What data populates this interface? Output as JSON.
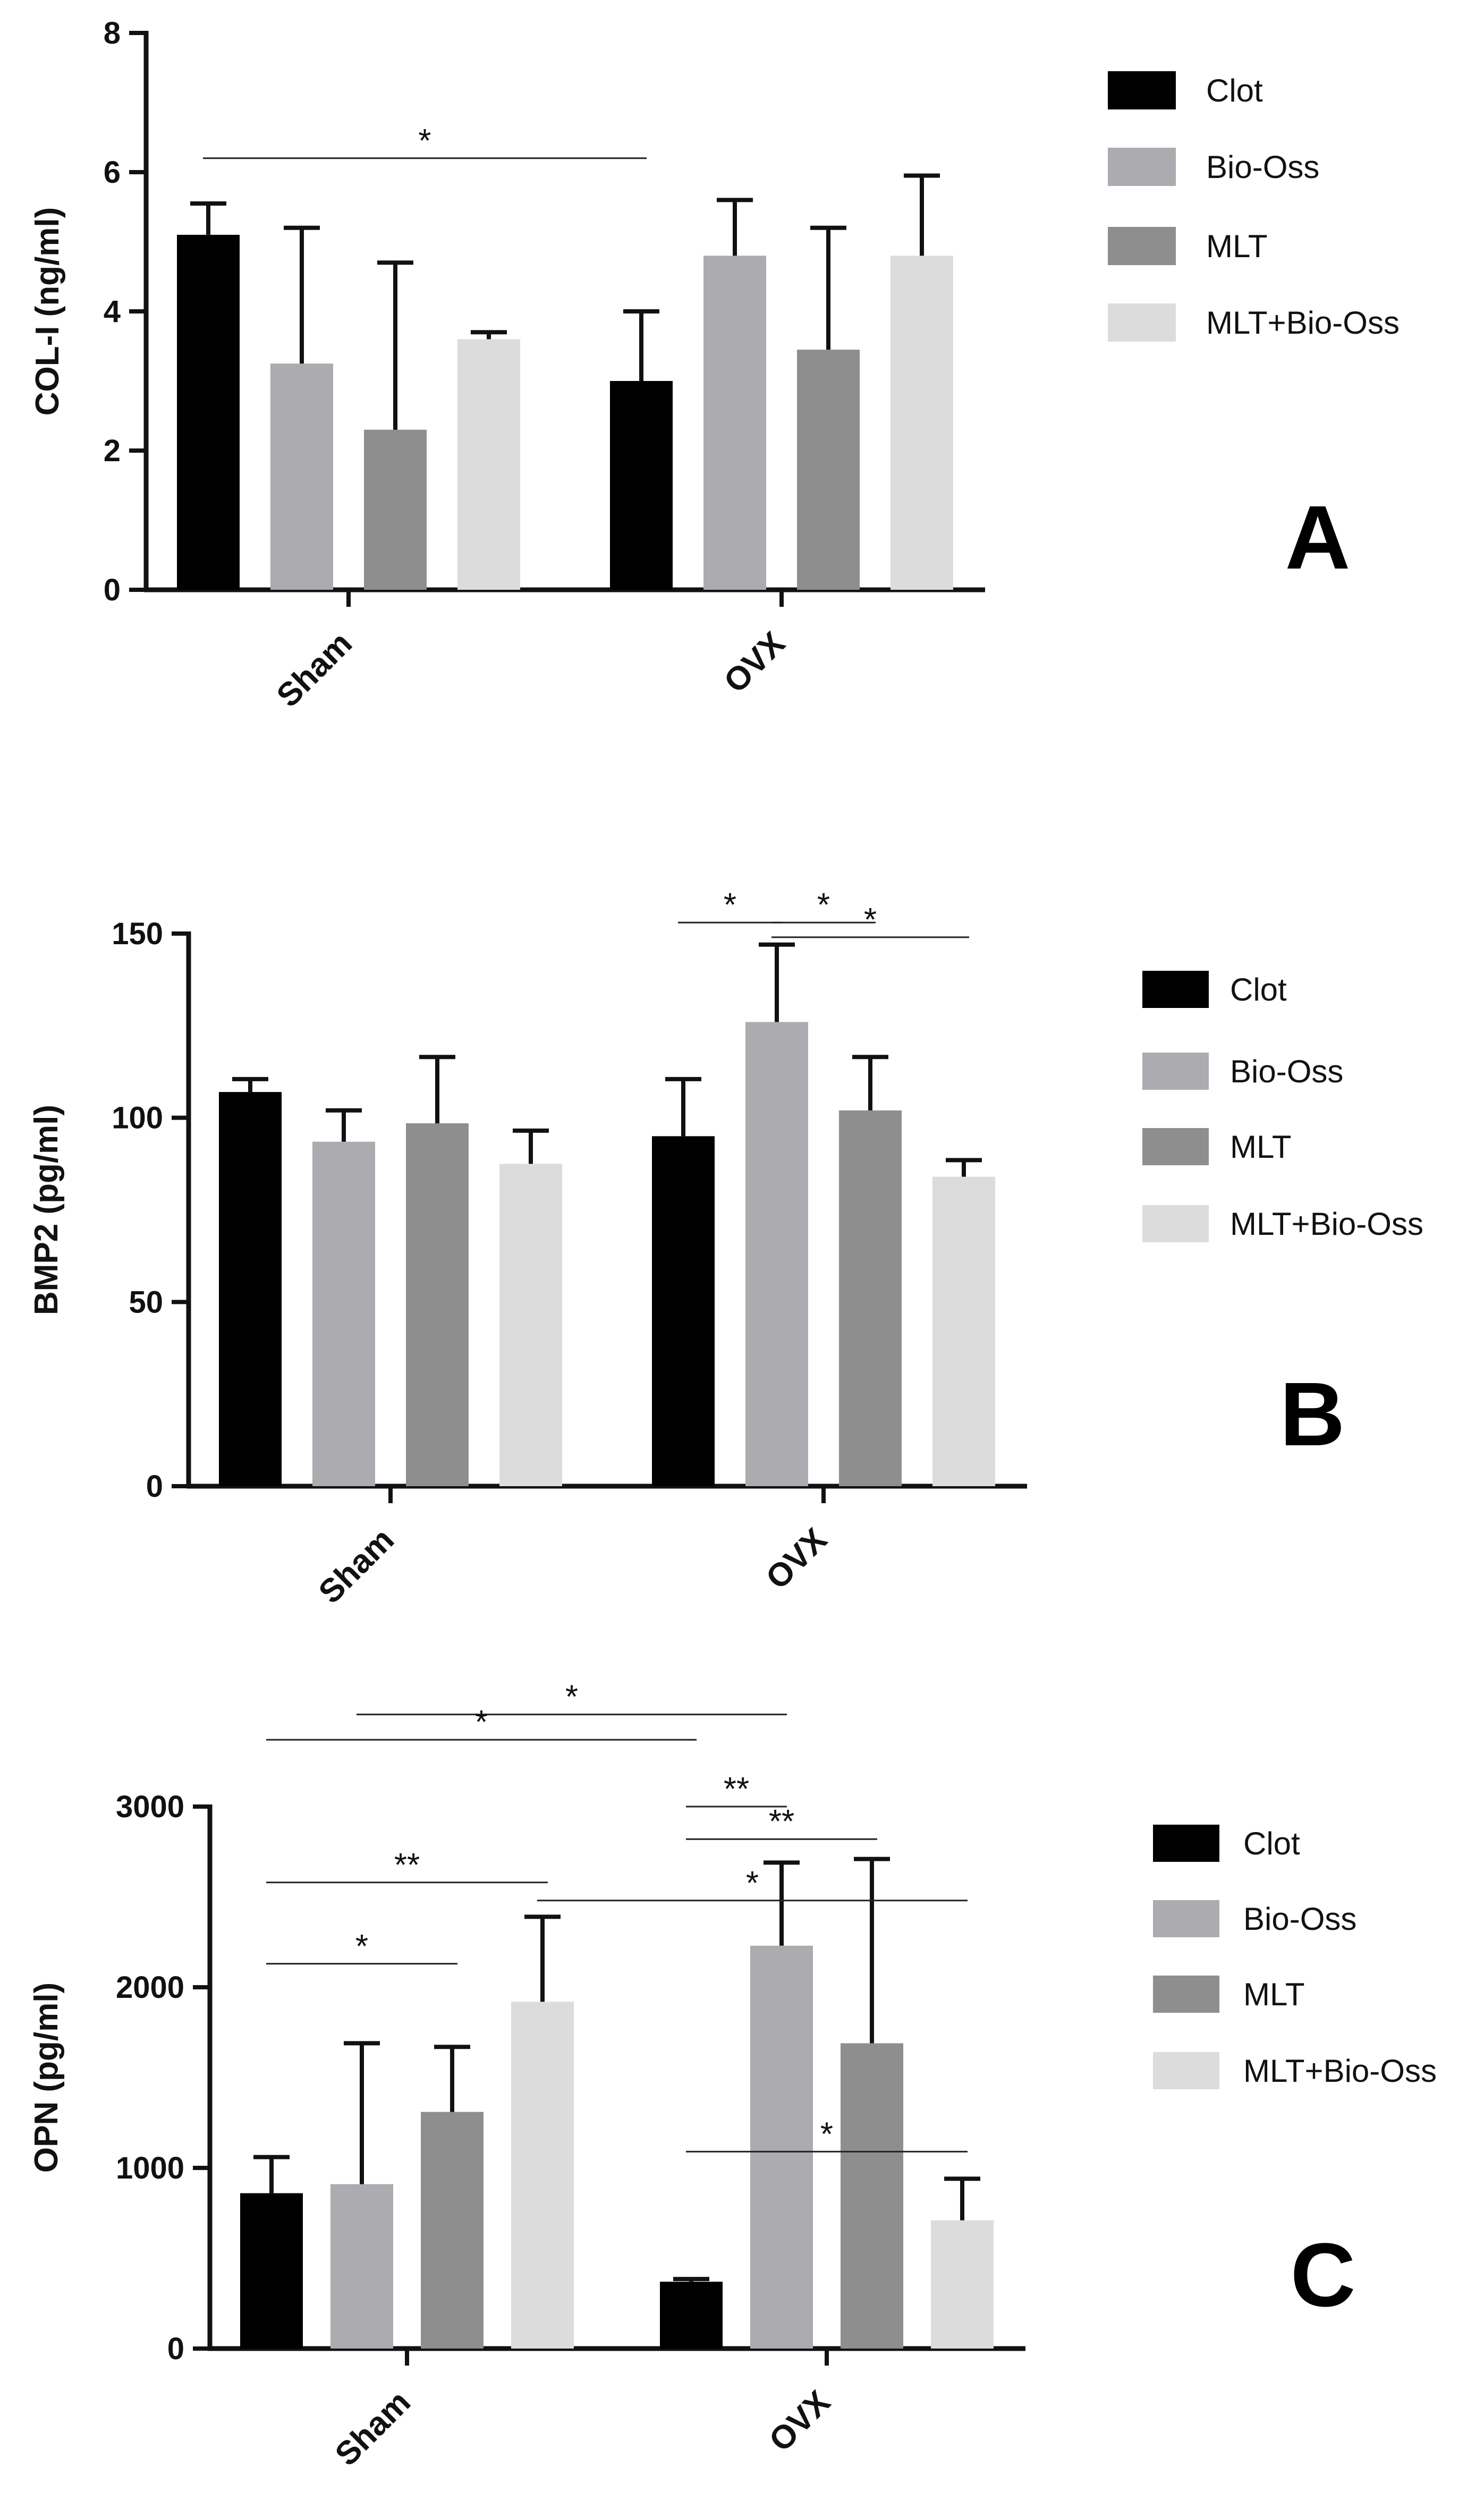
{
  "colors": {
    "Clot": "#000000",
    "Bio-Oss": "#ababb0",
    "MLT": "#8e8e8e",
    "MLT+Bio-Oss": "#dcdcdc",
    "axis": "#111111"
  },
  "chart_data": [
    {
      "type": "bar",
      "panel_label": "A",
      "ylabel": "COL-I  (ng/ml)",
      "xlabel": "",
      "categories": [
        "Sham",
        "OVX"
      ],
      "ylim": [
        0,
        8
      ],
      "yticks": [
        0,
        2,
        4,
        6,
        8
      ],
      "legend_position": "right",
      "series": [
        {
          "name": "Clot",
          "values": [
            5.1,
            3.0
          ],
          "errors": [
            0.45,
            1.0
          ]
        },
        {
          "name": "Bio-Oss",
          "values": [
            3.25,
            4.8
          ],
          "errors": [
            1.95,
            0.8
          ]
        },
        {
          "name": "MLT",
          "values": [
            2.3,
            3.45
          ],
          "errors": [
            2.4,
            1.75
          ]
        },
        {
          "name": "MLT+Bio-Oss",
          "values": [
            3.6,
            4.8
          ],
          "errors": [
            0.1,
            1.15
          ]
        }
      ],
      "annotations": [
        {
          "from": [
            0,
            0
          ],
          "to": [
            1,
            0
          ],
          "level": 6.2,
          "label": "*"
        }
      ]
    },
    {
      "type": "bar",
      "panel_label": "B",
      "ylabel": "BMP2 (pg/ml)",
      "xlabel": "",
      "categories": [
        "Sham",
        "OVX"
      ],
      "ylim": [
        0,
        150
      ],
      "yticks": [
        0,
        50,
        100,
        150
      ],
      "legend_position": "right",
      "series": [
        {
          "name": "Clot",
          "values": [
            107,
            95
          ],
          "errors": [
            3.5,
            15.5
          ]
        },
        {
          "name": "Bio-Oss",
          "values": [
            93.5,
            126
          ],
          "errors": [
            8.5,
            21
          ]
        },
        {
          "name": "MLT",
          "values": [
            98.5,
            102
          ],
          "errors": [
            18,
            14.5
          ]
        },
        {
          "name": "MLT+Bio-Oss",
          "values": [
            87.5,
            84
          ],
          "errors": [
            9,
            4.5
          ]
        }
      ],
      "annotations": [
        {
          "from": [
            1,
            0
          ],
          "to": [
            1,
            1
          ],
          "level": 153,
          "label": "*"
        },
        {
          "from": [
            1,
            1
          ],
          "to": [
            1,
            2
          ],
          "level": 153,
          "label": "*"
        },
        {
          "from": [
            1,
            1
          ],
          "to": [
            1,
            3
          ],
          "level": 149,
          "label": "*"
        }
      ]
    },
    {
      "type": "bar",
      "panel_label": "C",
      "ylabel": "OPN (pg/ml)",
      "xlabel": "",
      "categories": [
        "Sham",
        "OVX"
      ],
      "ylim": [
        0,
        3000
      ],
      "yticks": [
        0,
        1000,
        2000,
        3000
      ],
      "legend_position": "right",
      "series": [
        {
          "name": "Clot",
          "values": [
            860,
            370
          ],
          "errors": [
            200,
            15
          ]
        },
        {
          "name": "Bio-Oss",
          "values": [
            910,
            2230
          ],
          "errors": [
            780,
            460
          ]
        },
        {
          "name": "MLT",
          "values": [
            1310,
            1690
          ],
          "errors": [
            360,
            1020
          ]
        },
        {
          "name": "MLT+Bio-Oss",
          "values": [
            1920,
            710
          ],
          "errors": [
            470,
            230
          ]
        }
      ],
      "annotations": [
        {
          "from": [
            0,
            1
          ],
          "to": [
            1,
            1
          ],
          "level": 3510,
          "label": "*"
        },
        {
          "from": [
            0,
            0
          ],
          "to": [
            1,
            0
          ],
          "level": 3370,
          "label": "*"
        },
        {
          "from": [
            1,
            0
          ],
          "to": [
            1,
            1
          ],
          "level": 3000,
          "label": "**"
        },
        {
          "from": [
            1,
            0
          ],
          "to": [
            1,
            2
          ],
          "level": 2820,
          "label": "**"
        },
        {
          "from": [
            0,
            0
          ],
          "to": [
            0,
            3
          ],
          "level": 2580,
          "label": "**"
        },
        {
          "from": [
            0,
            3
          ],
          "to": [
            1,
            3
          ],
          "level": 2480,
          "label": "*"
        },
        {
          "from": [
            0,
            0
          ],
          "to": [
            0,
            2
          ],
          "level": 2130,
          "label": "*"
        },
        {
          "from": [
            1,
            0
          ],
          "to": [
            1,
            3
          ],
          "level": 1090,
          "label": "*"
        }
      ]
    }
  ]
}
